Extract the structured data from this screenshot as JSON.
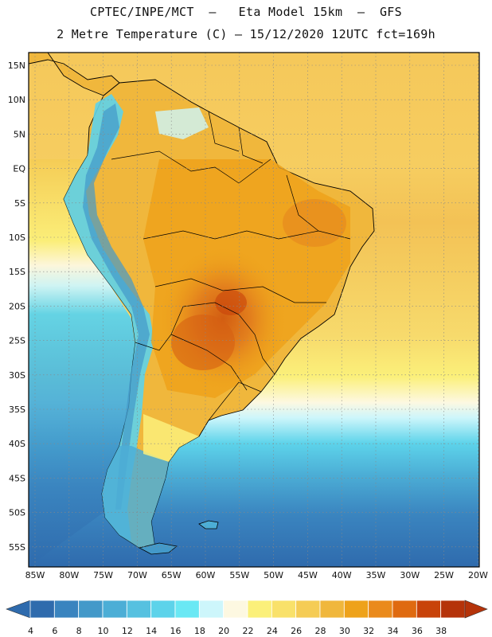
{
  "header": {
    "line1": "CPTEC/INPE/MCT  –   Eta Model 15km  –  GFS",
    "line2": "2 Metre Temperature (C) – 15/12/2020 12UTC fct=169h"
  },
  "map": {
    "lat_labels": [
      "15N",
      "10N",
      "5N",
      "EQ",
      "5S",
      "10S",
      "15S",
      "20S",
      "25S",
      "30S",
      "35S",
      "40S",
      "45S",
      "50S",
      "55S"
    ],
    "lon_labels": [
      "85W",
      "80W",
      "75W",
      "70W",
      "65W",
      "60W",
      "55W",
      "50W",
      "45W",
      "40W",
      "35W",
      "30W",
      "25W",
      "20W"
    ]
  },
  "colorbar": {
    "labels": [
      "4",
      "6",
      "8",
      "10",
      "12",
      "14",
      "16",
      "18",
      "20",
      "22",
      "24",
      "26",
      "28",
      "30",
      "32",
      "34",
      "36",
      "38"
    ],
    "colors": [
      "#2f6bad",
      "#3a84bf",
      "#4399c9",
      "#4caed6",
      "#56c1e0",
      "#5dd3ea",
      "#6ae8f4",
      "#cdf6fb",
      "#fdf8e1",
      "#fbf07a",
      "#f9e16a",
      "#f5cc55",
      "#f0b73c",
      "#eea21a",
      "#ea8a1c",
      "#df6a10",
      "#c8430a",
      "#b5330a"
    ]
  },
  "colors": {
    "ocean_cold": "#2f6bad",
    "ocean_mid": "#4caed6",
    "ocean_warm": "#f5cc55",
    "land_hot": "#e07a1c"
  }
}
